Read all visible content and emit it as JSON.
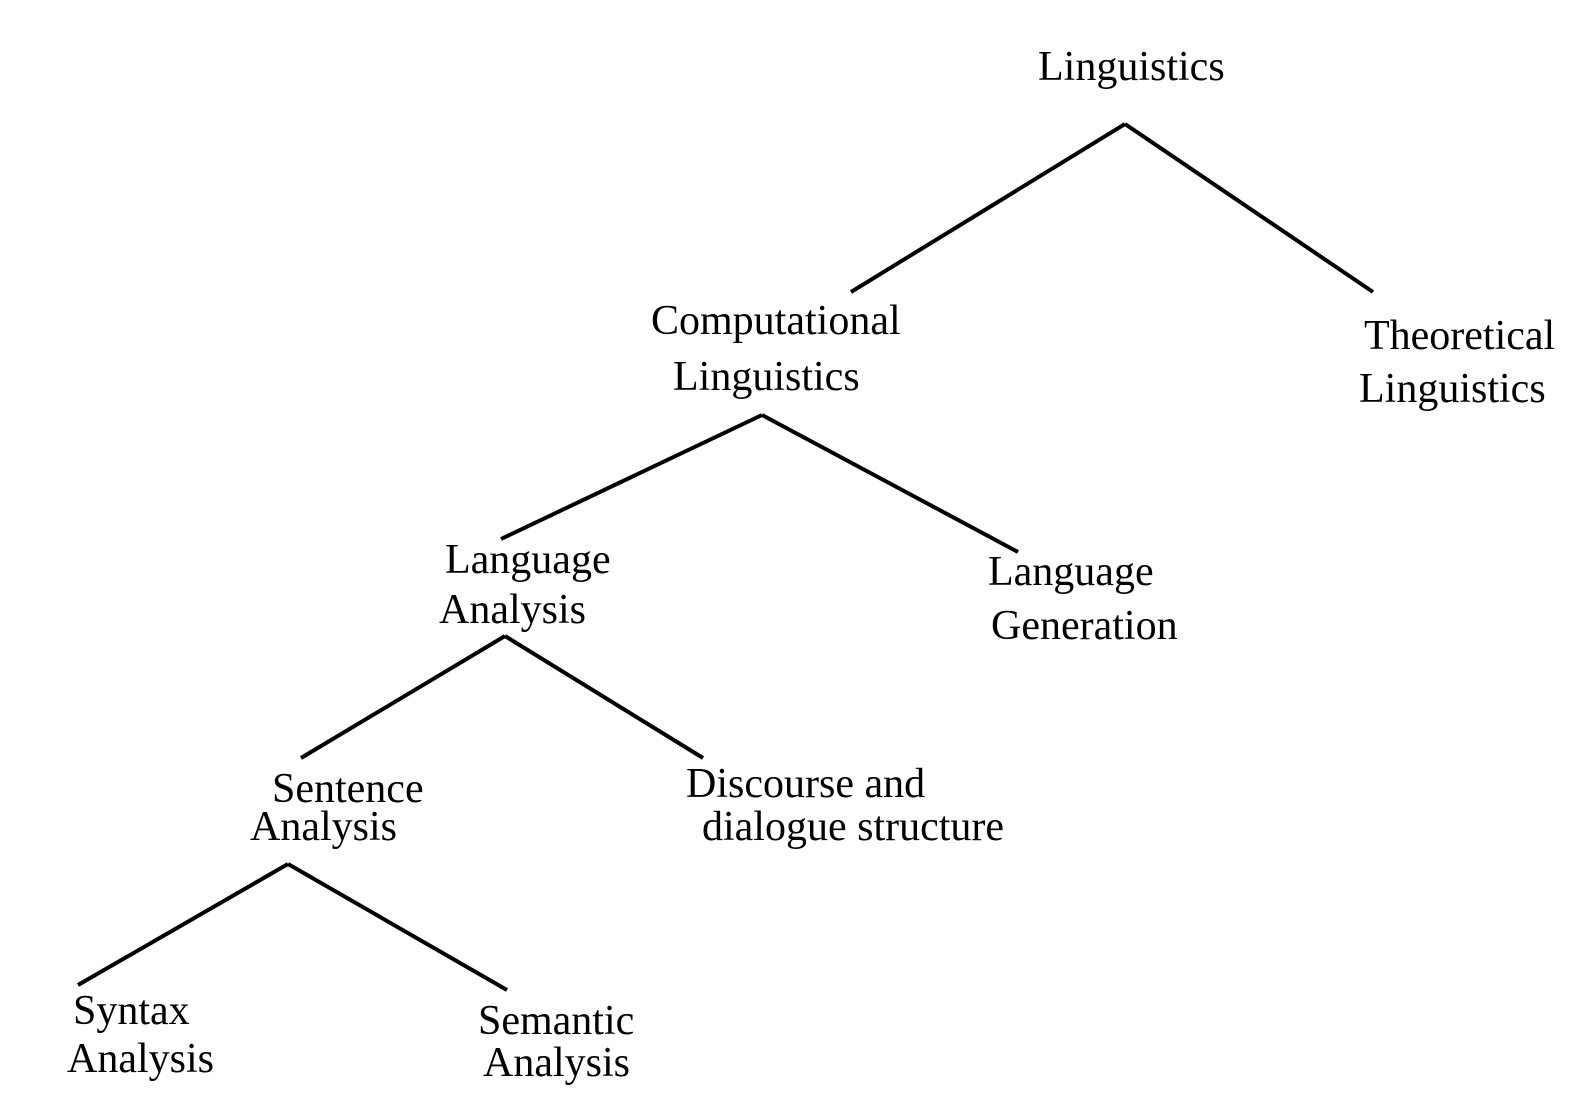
{
  "diagram": {
    "type": "tree",
    "nodes": {
      "root": {
        "lines": [
          "Linguistics"
        ]
      },
      "computational": {
        "lines": [
          "Computational",
          "Linguistics"
        ]
      },
      "theoretical": {
        "lines": [
          "Theoretical",
          "Linguistics"
        ]
      },
      "language_analysis": {
        "lines": [
          "Language",
          "Analysis"
        ]
      },
      "language_generation": {
        "lines": [
          "Language",
          "Generation"
        ]
      },
      "sentence_analysis": {
        "lines": [
          "Sentence",
          "Analysis"
        ]
      },
      "discourse": {
        "lines": [
          "Discourse and",
          "dialogue structure"
        ]
      },
      "syntax": {
        "lines": [
          "Syntax",
          "Analysis"
        ]
      },
      "semantic": {
        "lines": [
          "Semantic",
          "Analysis"
        ]
      }
    },
    "edges": [
      {
        "from": "root",
        "to": "computational"
      },
      {
        "from": "root",
        "to": "theoretical"
      },
      {
        "from": "computational",
        "to": "language_analysis"
      },
      {
        "from": "computational",
        "to": "language_generation"
      },
      {
        "from": "language_analysis",
        "to": "sentence_analysis"
      },
      {
        "from": "language_analysis",
        "to": "discourse"
      },
      {
        "from": "sentence_analysis",
        "to": "syntax"
      },
      {
        "from": "sentence_analysis",
        "to": "semantic"
      }
    ]
  }
}
